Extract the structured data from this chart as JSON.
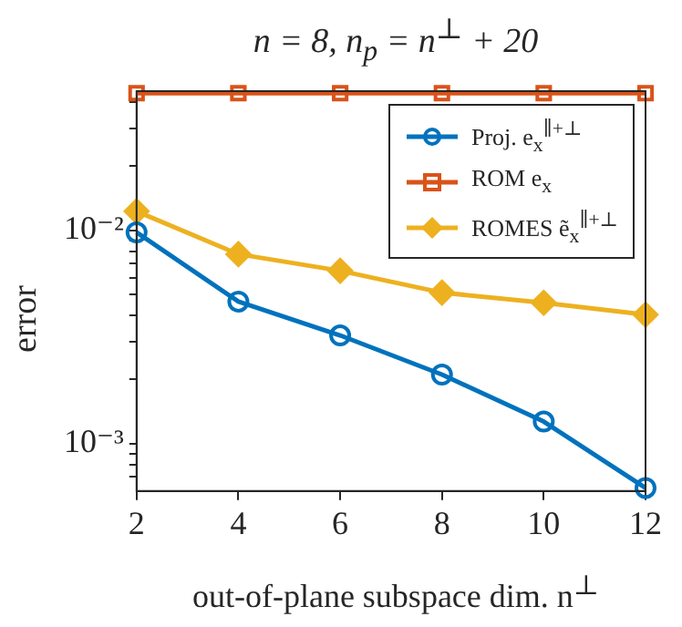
{
  "chart_data": {
    "type": "line",
    "title": "n = 8, n$_{p}$ = n$^{⊥}$ + 20",
    "xlabel": "out-of-plane subspace dim. n$^{⊥}$",
    "ylabel": "error",
    "x": [
      2,
      4,
      6,
      8,
      10,
      12
    ],
    "series": [
      {
        "name": "Proj. e$_{x}$$^{∥+⊥}$",
        "color": "#0072bd",
        "marker": "circle",
        "values": [
          0.0098,
          0.00464,
          0.00322,
          0.00211,
          0.00127,
          0.00062
        ]
      },
      {
        "name": "ROM e$_{x}$",
        "color": "#d95319",
        "marker": "square",
        "values": [
          0.044,
          0.044,
          0.044,
          0.044,
          0.044,
          0.044
        ]
      },
      {
        "name": "ROMES ẽ$_{x}$$^{∥+⊥}$",
        "color": "#edb120",
        "marker": "diamond",
        "values": [
          0.0123,
          0.00774,
          0.00647,
          0.00511,
          0.00458,
          0.00403
        ]
      }
    ],
    "xlim": [
      2,
      12
    ],
    "xticks": [
      2,
      4,
      6,
      8,
      10,
      12
    ],
    "ylim": [
      0.0006,
      0.045
    ],
    "yticks": [
      {
        "value": 0.0007,
        "label": null
      },
      {
        "value": 0.0008,
        "label": null
      },
      {
        "value": 0.0009,
        "label": null
      },
      {
        "value": 0.001,
        "label": "10⁻³"
      },
      {
        "value": 0.002,
        "label": null
      },
      {
        "value": 0.003,
        "label": null
      },
      {
        "value": 0.004,
        "label": null
      },
      {
        "value": 0.005,
        "label": null
      },
      {
        "value": 0.006,
        "label": null
      },
      {
        "value": 0.007,
        "label": null
      },
      {
        "value": 0.008,
        "label": null
      },
      {
        "value": 0.009,
        "label": null
      },
      {
        "value": 0.01,
        "label": "10⁻²"
      },
      {
        "value": 0.02,
        "label": null
      },
      {
        "value": 0.03,
        "label": null
      },
      {
        "value": 0.04,
        "label": null
      }
    ],
    "log": "y",
    "grid": false,
    "legend": "top right",
    "line_style": "solid"
  }
}
